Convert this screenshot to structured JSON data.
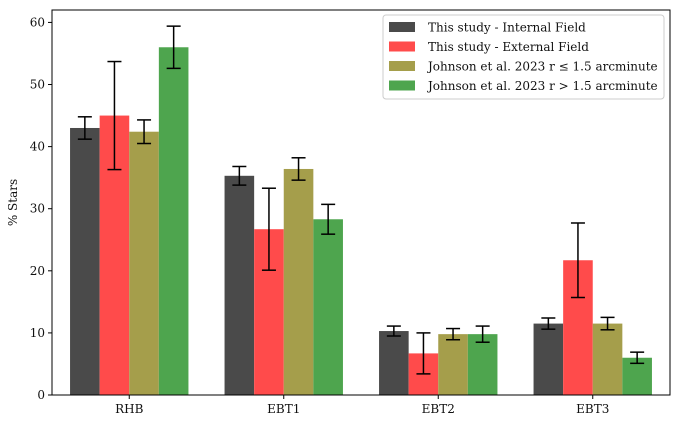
{
  "chart_data": {
    "type": "bar",
    "title": "",
    "xlabel": "",
    "ylabel": "% Stars",
    "ylim": [
      0,
      62
    ],
    "yticks": [
      0,
      10,
      20,
      30,
      40,
      50,
      60
    ],
    "categories": [
      "RHB",
      "EBT1",
      "EBT2",
      "EBT3"
    ],
    "legend_position": "top-right",
    "series": [
      {
        "name": "This study - Internal Field",
        "color": "#4a4a4a",
        "values": [
          43.0,
          35.3,
          10.3,
          11.5
        ],
        "errors": [
          1.8,
          1.5,
          0.8,
          0.9
        ]
      },
      {
        "name": "This study - External Field",
        "color": "#ff4b4b",
        "values": [
          45.0,
          26.7,
          6.7,
          21.7
        ],
        "errors": [
          8.7,
          6.6,
          3.3,
          6.0
        ]
      },
      {
        "name": "Johnson et al. 2023 r ≤ 1.5 arcminute",
        "color": "#a59e4b",
        "values": [
          42.4,
          36.4,
          9.8,
          11.5
        ],
        "errors": [
          1.9,
          1.8,
          0.9,
          1.0
        ]
      },
      {
        "name": "Johnson et al. 2023 r > 1.5 arcminute",
        "color": "#4ea54e",
        "values": [
          56.0,
          28.3,
          9.8,
          6.0
        ],
        "errors": [
          3.4,
          2.4,
          1.3,
          0.9
        ]
      }
    ]
  }
}
